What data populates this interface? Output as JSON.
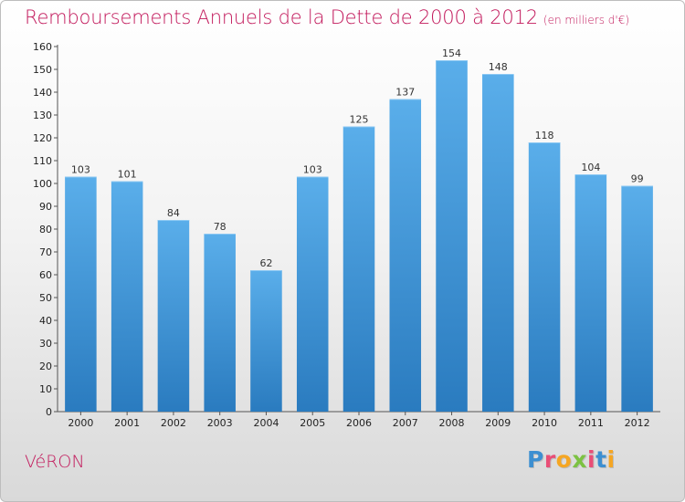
{
  "header": {
    "title": "Remboursements Annuels de la Dette de 2000 à 2012",
    "unit": "(en milliers d'€)"
  },
  "footer": {
    "town": "VéRON",
    "logo_letters": [
      "P",
      "r",
      "o",
      "x",
      "i",
      "t",
      "i"
    ],
    "logo_colors": [
      "#3d8fd1",
      "#e94e77",
      "#f5a623",
      "#7cc242",
      "#e94e77",
      "#3d8fd1",
      "#f5a623"
    ]
  },
  "chart_data": {
    "type": "bar",
    "categories": [
      "2000",
      "2001",
      "2002",
      "2003",
      "2004",
      "2005",
      "2006",
      "2007",
      "2008",
      "2009",
      "2010",
      "2011",
      "2012"
    ],
    "values": [
      103,
      101,
      84,
      78,
      62,
      103,
      125,
      137,
      154,
      148,
      118,
      104,
      99
    ],
    "ylim": [
      0,
      160
    ],
    "yticks": [
      0,
      10,
      20,
      30,
      40,
      50,
      60,
      70,
      80,
      90,
      100,
      110,
      120,
      130,
      140,
      150,
      160
    ],
    "grid": false,
    "bar_color_top": "#5aaeea",
    "bar_color_bottom": "#2a7bbf"
  }
}
